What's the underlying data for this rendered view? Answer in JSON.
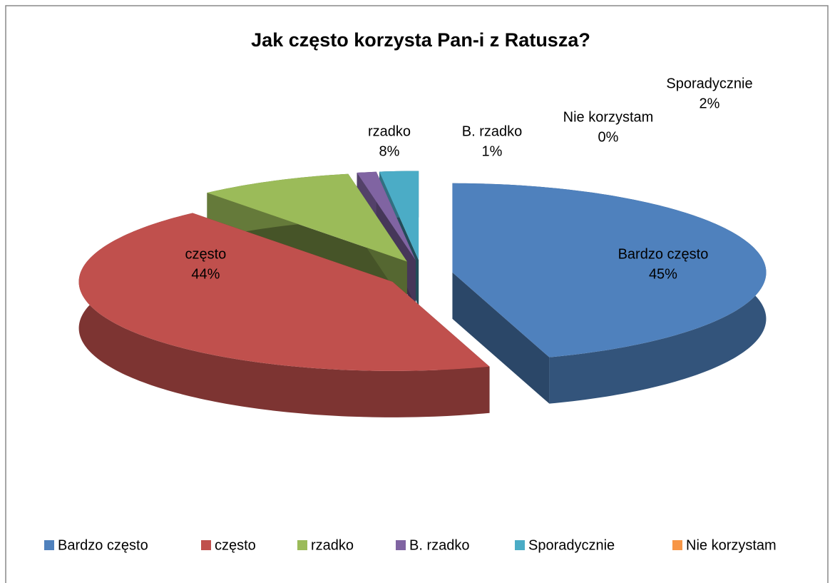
{
  "chart_data": {
    "type": "pie3d",
    "title": "Jak często korzysta Pan-i z Ratusza?",
    "categories": [
      "Bardzo często",
      "często",
      "rzadko",
      "B. rzadko",
      "Sporadycznie",
      "Nie korzystam"
    ],
    "values": [
      45,
      44,
      8,
      1,
      2,
      0
    ],
    "value_labels": [
      "45%",
      "44%",
      "8%",
      "1%",
      "2%",
      "0%"
    ],
    "colors": [
      "#4f81bd",
      "#c0504d",
      "#9bbb59",
      "#8064a2",
      "#4bacc6",
      "#f79646"
    ],
    "legend": "bottom"
  }
}
